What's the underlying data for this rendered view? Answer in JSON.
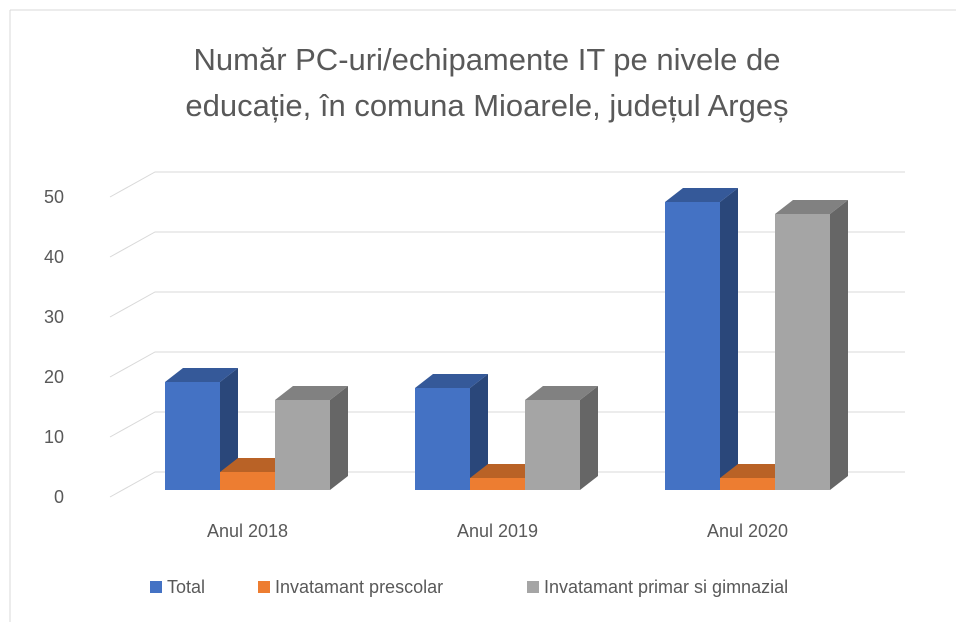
{
  "chart_data": {
    "type": "bar3d",
    "title": [
      "Număr PC-uri/echipamente IT pe nivele de",
      "educație, în comuna Mioarele, județul Argeș"
    ],
    "categories": [
      "Anul 2018",
      "Anul 2019",
      "Anul 2020"
    ],
    "series": [
      {
        "name": "Total",
        "color": "#4472c4",
        "values": [
          18,
          17,
          48
        ]
      },
      {
        "name": "Invatamant prescolar",
        "color": "#ed7d31",
        "values": [
          3,
          2,
          2
        ]
      },
      {
        "name": "Invatamant primar si gimnazial",
        "color": "#a5a5a5",
        "values": [
          15,
          15,
          46
        ]
      }
    ],
    "ylim": [
      0,
      50
    ],
    "yticks": [
      0,
      10,
      20,
      30,
      40,
      50
    ],
    "grid": true,
    "legend": "bottom"
  }
}
